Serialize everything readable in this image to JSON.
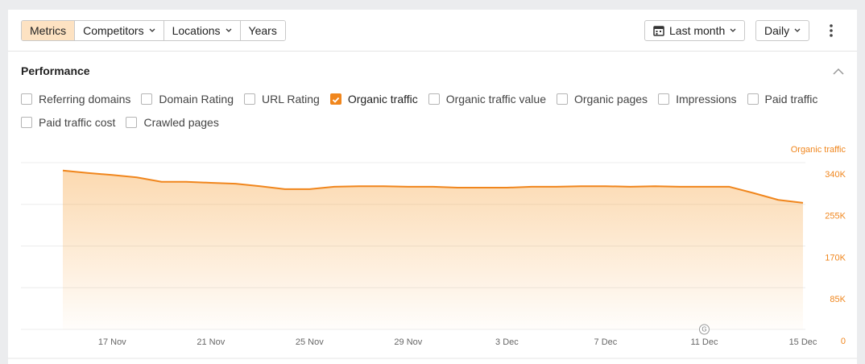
{
  "toolbar": {
    "segments": [
      {
        "label": "Metrics",
        "active": true,
        "dropdown": false
      },
      {
        "label": "Competitors",
        "active": false,
        "dropdown": true
      },
      {
        "label": "Locations",
        "active": false,
        "dropdown": true
      },
      {
        "label": "Years",
        "active": false,
        "dropdown": false
      }
    ],
    "period": "Last month",
    "interval": "Daily"
  },
  "panel": {
    "title": "Performance",
    "metrics": [
      {
        "label": "Referring domains",
        "checked": false
      },
      {
        "label": "Domain Rating",
        "checked": false
      },
      {
        "label": "URL Rating",
        "checked": false
      },
      {
        "label": "Organic traffic",
        "checked": true
      },
      {
        "label": "Organic traffic value",
        "checked": false
      },
      {
        "label": "Organic pages",
        "checked": false
      },
      {
        "label": "Impressions",
        "checked": false
      },
      {
        "label": "Paid traffic",
        "checked": false
      },
      {
        "label": "Paid traffic cost",
        "checked": false
      },
      {
        "label": "Crawled pages",
        "checked": false
      }
    ]
  },
  "chart_data": {
    "type": "area",
    "categories": [
      null,
      null,
      "17 Nov",
      null,
      null,
      null,
      "21 Nov",
      null,
      null,
      null,
      "25 Nov",
      null,
      null,
      null,
      "29 Nov",
      null,
      null,
      null,
      "3 Dec",
      null,
      null,
      null,
      "7 Dec",
      null,
      null,
      null,
      "11 Dec",
      null,
      null,
      null,
      "15 Dec"
    ],
    "series": [
      {
        "name": "Organic traffic",
        "color": "#f0861d",
        "values": [
          324000,
          319000,
          315000,
          310000,
          301000,
          301000,
          299000,
          297000,
          292000,
          286000,
          286000,
          291000,
          292000,
          292000,
          291000,
          291000,
          289000,
          289000,
          289000,
          291000,
          291000,
          292000,
          292000,
          291000,
          292000,
          291000,
          291000,
          291000,
          278000,
          264000,
          258000
        ]
      }
    ],
    "ylim": [
      0,
      340000
    ],
    "yticks": [
      0,
      {
        "value": 85000,
        "label": "85K"
      },
      {
        "value": 170000,
        "label": "170K"
      },
      {
        "value": 255000,
        "label": "255K"
      },
      {
        "value": 340000,
        "label": "340K"
      }
    ],
    "grid": true,
    "annotations": [
      {
        "text": "G",
        "category": "11 Dec"
      }
    ]
  }
}
